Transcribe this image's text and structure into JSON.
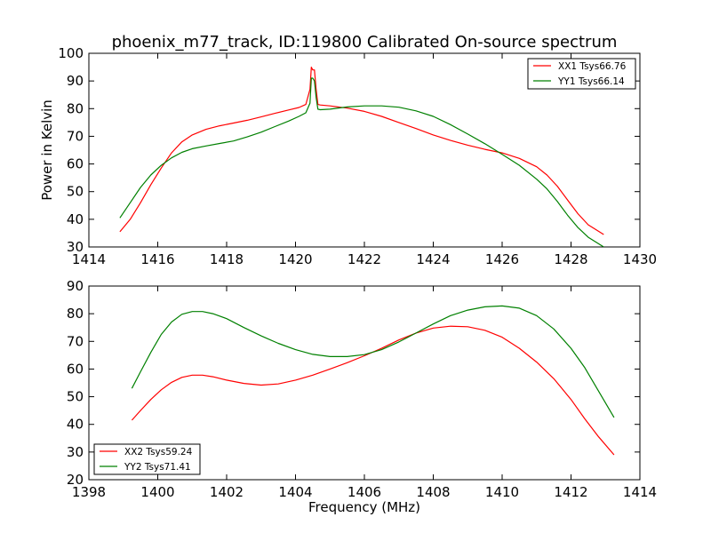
{
  "chart_data": [
    {
      "type": "line",
      "title": "phoenix_m77_track, ID:119800 Calibrated On-source spectrum",
      "xlabel": "",
      "ylabel": "Power in Kelvin",
      "xlim": [
        1414,
        1430
      ],
      "ylim": [
        30,
        100
      ],
      "xticks": [
        1414,
        1416,
        1418,
        1420,
        1422,
        1424,
        1426,
        1428,
        1430
      ],
      "yticks": [
        30,
        40,
        50,
        60,
        70,
        80,
        90,
        100
      ],
      "grid": false,
      "legend_position": "top-right",
      "series": [
        {
          "name": "XX1 Tsys66.76",
          "color": "#ff0000",
          "x": [
            1414.9,
            1415.2,
            1415.5,
            1415.8,
            1416.1,
            1416.4,
            1416.7,
            1417.0,
            1417.4,
            1417.8,
            1418.2,
            1418.6,
            1419.0,
            1419.4,
            1419.8,
            1420.1,
            1420.3,
            1420.42,
            1420.46,
            1420.5,
            1420.55,
            1420.6,
            1420.65,
            1420.72,
            1421.0,
            1421.5,
            1422.0,
            1422.5,
            1423.0,
            1423.5,
            1424.0,
            1424.5,
            1425.0,
            1425.5,
            1426.0,
            1426.5,
            1427.0,
            1427.3,
            1427.6,
            1427.9,
            1428.2,
            1428.5,
            1428.95
          ],
          "y": [
            35.5,
            40.0,
            46.0,
            52.5,
            58.5,
            64.0,
            68.0,
            70.5,
            72.5,
            73.8,
            74.8,
            75.8,
            77.0,
            78.3,
            79.5,
            80.4,
            81.5,
            87.0,
            95.0,
            94.0,
            94.0,
            87.0,
            81.5,
            81.3,
            81.0,
            80.2,
            79.0,
            77.2,
            75.0,
            72.8,
            70.5,
            68.5,
            66.8,
            65.3,
            64.0,
            62.0,
            59.0,
            56.0,
            52.0,
            47.0,
            42.0,
            38.0,
            34.5
          ]
        },
        {
          "name": "YY1 Tsys66.14",
          "color": "#008000",
          "x": [
            1414.9,
            1415.2,
            1415.5,
            1415.8,
            1416.1,
            1416.4,
            1416.7,
            1417.0,
            1417.4,
            1417.8,
            1418.2,
            1418.6,
            1419.0,
            1419.4,
            1419.8,
            1420.1,
            1420.3,
            1420.42,
            1420.46,
            1420.5,
            1420.55,
            1420.6,
            1420.65,
            1420.72,
            1421.0,
            1421.5,
            1422.0,
            1422.5,
            1423.0,
            1423.5,
            1424.0,
            1424.5,
            1425.0,
            1425.5,
            1426.0,
            1426.5,
            1427.0,
            1427.3,
            1427.6,
            1427.9,
            1428.2,
            1428.5,
            1428.95
          ],
          "y": [
            40.5,
            46.0,
            51.5,
            56.0,
            59.5,
            62.2,
            64.2,
            65.5,
            66.5,
            67.4,
            68.3,
            69.8,
            71.5,
            73.5,
            75.5,
            77.2,
            78.5,
            82.0,
            91.0,
            91.0,
            90.0,
            84.0,
            79.8,
            79.6,
            79.8,
            80.6,
            81.0,
            81.0,
            80.5,
            79.2,
            77.2,
            74.2,
            70.8,
            67.3,
            63.5,
            59.5,
            54.5,
            51.0,
            46.5,
            41.5,
            37.0,
            33.5,
            30.0
          ]
        }
      ]
    },
    {
      "type": "line",
      "title": "",
      "xlabel": "Frequency (MHz)",
      "ylabel": "",
      "xlim": [
        1398,
        1414
      ],
      "ylim": [
        20,
        90
      ],
      "xticks": [
        1398,
        1400,
        1402,
        1404,
        1406,
        1408,
        1410,
        1412,
        1414
      ],
      "yticks": [
        20,
        30,
        40,
        50,
        60,
        70,
        80,
        90
      ],
      "grid": false,
      "legend_position": "bottom-left",
      "series": [
        {
          "name": "XX2 Tsys59.24",
          "color": "#ff0000",
          "x": [
            1399.25,
            1399.5,
            1399.8,
            1400.1,
            1400.4,
            1400.7,
            1401.0,
            1401.3,
            1401.6,
            1402.0,
            1402.5,
            1403.0,
            1403.5,
            1404.0,
            1404.5,
            1405.0,
            1405.5,
            1406.0,
            1406.5,
            1407.0,
            1407.5,
            1408.0,
            1408.5,
            1409.0,
            1409.5,
            1410.0,
            1410.5,
            1411.0,
            1411.5,
            1412.0,
            1412.4,
            1412.8,
            1413.25
          ],
          "y": [
            41.5,
            45.0,
            49.0,
            52.5,
            55.2,
            57.0,
            57.8,
            57.8,
            57.2,
            56.0,
            54.8,
            54.2,
            54.6,
            56.0,
            57.8,
            60.0,
            62.3,
            64.8,
            67.5,
            70.5,
            73.0,
            74.8,
            75.5,
            75.3,
            74.0,
            71.5,
            67.5,
            62.5,
            56.5,
            49.0,
            42.0,
            35.5,
            29.0
          ]
        },
        {
          "name": "YY2 Tsys71.41",
          "color": "#008000",
          "x": [
            1399.25,
            1399.5,
            1399.8,
            1400.1,
            1400.4,
            1400.7,
            1401.0,
            1401.3,
            1401.6,
            1402.0,
            1402.5,
            1403.0,
            1403.5,
            1404.0,
            1404.5,
            1405.0,
            1405.5,
            1406.0,
            1406.5,
            1407.0,
            1407.5,
            1408.0,
            1408.5,
            1409.0,
            1409.5,
            1410.0,
            1410.5,
            1411.0,
            1411.5,
            1412.0,
            1412.4,
            1412.8,
            1413.25
          ],
          "y": [
            53.0,
            59.0,
            66.0,
            72.5,
            77.0,
            79.8,
            80.8,
            80.8,
            80.0,
            78.2,
            75.0,
            72.0,
            69.3,
            67.0,
            65.3,
            64.5,
            64.5,
            65.2,
            67.0,
            69.8,
            73.0,
            76.3,
            79.3,
            81.3,
            82.5,
            82.8,
            82.0,
            79.3,
            74.5,
            67.5,
            60.5,
            52.0,
            42.5
          ]
        }
      ]
    }
  ]
}
